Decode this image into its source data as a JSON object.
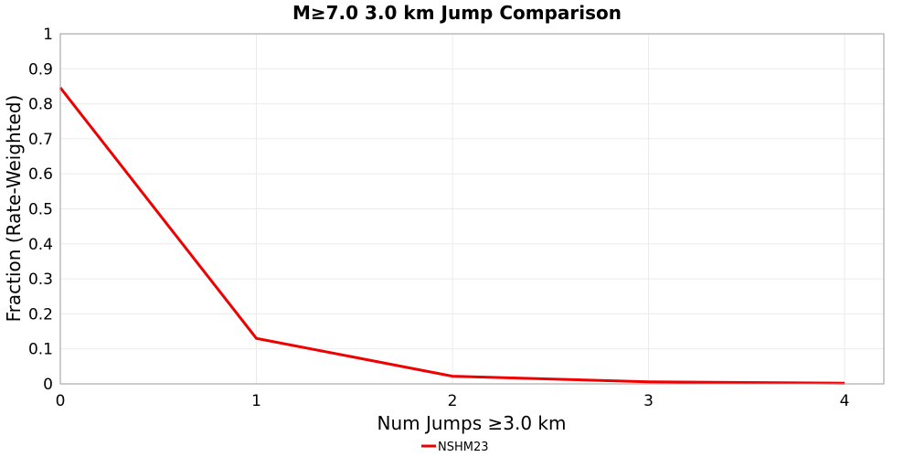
{
  "chart_data": {
    "type": "line",
    "title": "M≥7.0 3.0 km Jump Comparison",
    "xlabel": "Num Jumps ≥3.0 km",
    "ylabel": "Fraction (Rate-Weighted)",
    "xlim": [
      0,
      4.2
    ],
    "ylim": [
      0,
      1
    ],
    "x_ticks": [
      "0",
      "1",
      "2",
      "3",
      "4"
    ],
    "y_ticks": [
      "0",
      "0.1",
      "0.2",
      "0.3",
      "0.4",
      "0.5",
      "0.6",
      "0.7",
      "0.8",
      "0.9",
      "1"
    ],
    "grid": true,
    "legend_position": "bottom-center",
    "series": [
      {
        "name": "NSHM23",
        "color": "#ee0000",
        "x": [
          0,
          1,
          2,
          3,
          4
        ],
        "y": [
          0.846,
          0.13,
          0.022,
          0.006,
          0.002
        ]
      }
    ]
  }
}
